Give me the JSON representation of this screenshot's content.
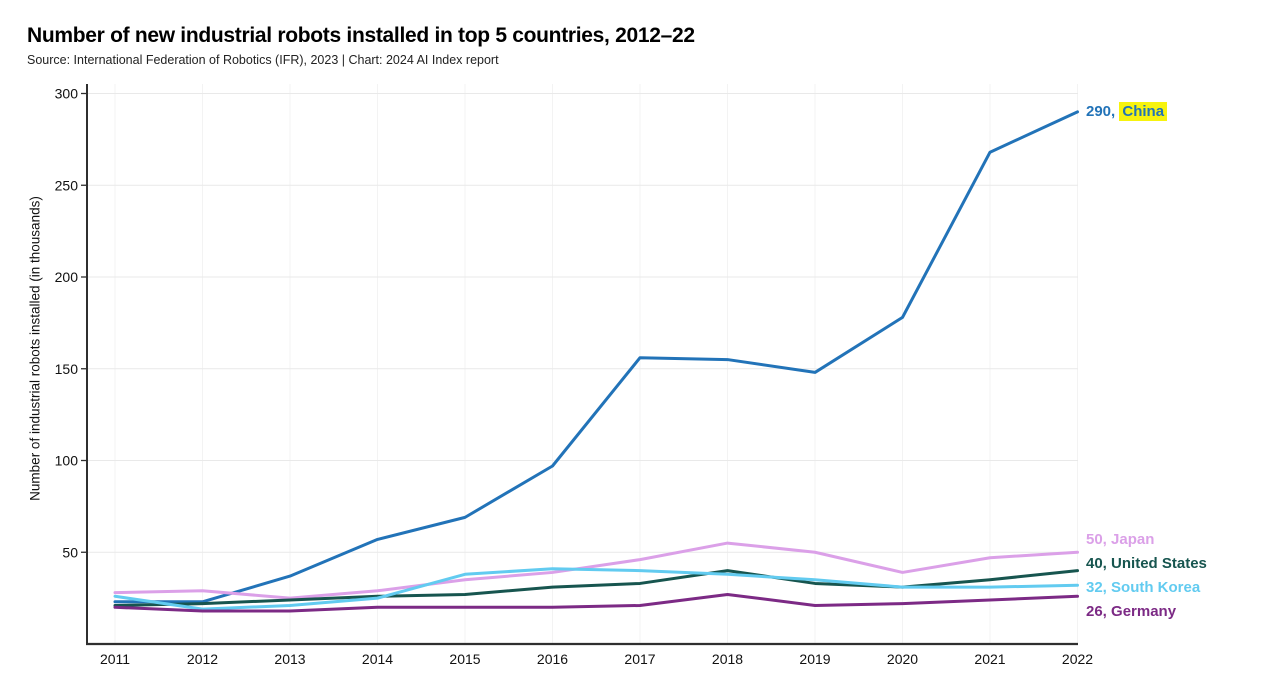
{
  "header": {
    "title": "Number of new industrial robots installed in top 5 countries, 2012–22",
    "source": "Source: International Federation of Robotics (IFR), 2023 | Chart: 2024 AI Index report"
  },
  "chart_data": {
    "type": "line",
    "title": "Number of new industrial robots installed in top 5 countries, 2012–22",
    "x": [
      2011,
      2012,
      2013,
      2014,
      2015,
      2016,
      2017,
      2018,
      2019,
      2020,
      2021,
      2022
    ],
    "xlabel": "",
    "ylabel": "Number of industrial robots installed (in thousands)",
    "ylim": [
      0,
      300
    ],
    "yticks": [
      50,
      100,
      150,
      200,
      250,
      300
    ],
    "grid": true,
    "legend_position": "end-of-line labels, right side",
    "series": [
      {
        "name": "China",
        "color": "#2273b8",
        "end_value": "290",
        "highlighted": true,
        "highlight_color": "#f7f30e",
        "values": [
          23,
          23,
          37,
          57,
          69,
          97,
          156,
          155,
          148,
          178,
          268,
          290
        ]
      },
      {
        "name": "Japan",
        "color": "#dba0e8",
        "end_value": "50",
        "highlighted": false,
        "values": [
          28,
          29,
          25,
          29,
          35,
          39,
          46,
          55,
          50,
          39,
          47,
          50
        ]
      },
      {
        "name": "United States",
        "color": "#17554f",
        "end_value": "40",
        "highlighted": false,
        "values": [
          21,
          22,
          24,
          26,
          27,
          31,
          33,
          40,
          33,
          31,
          35,
          40
        ]
      },
      {
        "name": "South Korea",
        "color": "#62cbf0",
        "end_value": "32",
        "highlighted": false,
        "values": [
          26,
          19,
          21,
          25,
          38,
          41,
          40,
          38,
          35,
          31,
          31,
          32
        ]
      },
      {
        "name": "Germany",
        "color": "#7c2a85",
        "end_value": "26",
        "highlighted": false,
        "values": [
          20,
          18,
          18,
          20,
          20,
          20,
          21,
          27,
          21,
          22,
          24,
          26
        ]
      }
    ]
  },
  "colors": {
    "background": "#ffffff",
    "axis": "#2f2f2f",
    "grid_horizontal": "#e9e9e9",
    "grid_vertical": "#f3f3f3",
    "tick_text": "#111111",
    "title_text": "#000000",
    "source_text": "#222222",
    "highlight": "#f7f30e"
  }
}
